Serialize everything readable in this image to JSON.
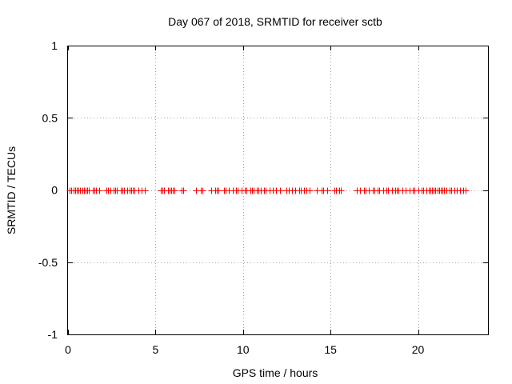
{
  "chart_data": {
    "type": "scatter",
    "title": "Day 067 of 2018, SRMTID for receiver sctb",
    "xlabel": "GPS time / hours",
    "ylabel": "SRMTID / TECUs",
    "xlim": [
      0,
      24
    ],
    "ylim": [
      -1,
      1
    ],
    "x_ticks": [
      0,
      5,
      10,
      15,
      20
    ],
    "x_tick_labels": [
      "0",
      "5",
      "10",
      "15",
      "20"
    ],
    "y_ticks": [
      -1,
      -0.5,
      0,
      0.5,
      1
    ],
    "y_tick_labels": [
      "-1",
      "-0.5",
      "0",
      "0.5",
      "1"
    ],
    "grid": true,
    "series": [
      {
        "name": "SRMTID",
        "color": "#ff0000",
        "marker": "plus",
        "x": [
          0.1,
          0.2,
          0.3,
          0.4,
          0.5,
          0.6,
          0.7,
          0.8,
          0.9,
          1.0,
          1.1,
          1.2,
          1.4,
          1.5,
          1.6,
          1.8,
          2.2,
          2.3,
          2.4,
          2.6,
          2.7,
          2.8,
          3.0,
          3.1,
          3.2,
          3.4,
          3.5,
          3.6,
          3.7,
          3.8,
          4.0,
          4.2,
          4.4,
          5.3,
          5.4,
          5.5,
          5.7,
          5.8,
          5.9,
          6.0,
          6.1,
          6.5,
          6.6,
          7.3,
          7.6,
          7.7,
          8.2,
          8.4,
          8.5,
          8.6,
          8.9,
          9.0,
          9.2,
          9.4,
          9.6,
          9.7,
          9.9,
          10.1,
          10.2,
          10.4,
          10.5,
          10.6,
          10.8,
          10.9,
          11.0,
          11.2,
          11.3,
          11.5,
          11.7,
          11.9,
          12.1,
          12.5,
          12.6,
          12.8,
          13.0,
          13.2,
          13.3,
          13.5,
          13.6,
          13.8,
          14.2,
          14.5,
          14.6,
          14.8,
          15.2,
          15.3,
          15.5,
          15.6,
          16.5,
          16.7,
          16.9,
          17.0,
          17.2,
          17.4,
          17.5,
          17.7,
          17.8,
          18.0,
          18.2,
          18.3,
          18.5,
          18.7,
          18.8,
          18.9,
          19.1,
          19.3,
          19.5,
          19.7,
          19.8,
          20.0,
          20.2,
          20.3,
          20.5,
          20.6,
          20.7,
          20.8,
          20.9,
          21.0,
          21.1,
          21.2,
          21.3,
          21.4,
          21.5,
          21.6,
          21.8,
          21.9,
          22.1,
          22.2,
          22.4,
          22.6,
          22.7
        ]
      }
    ]
  }
}
